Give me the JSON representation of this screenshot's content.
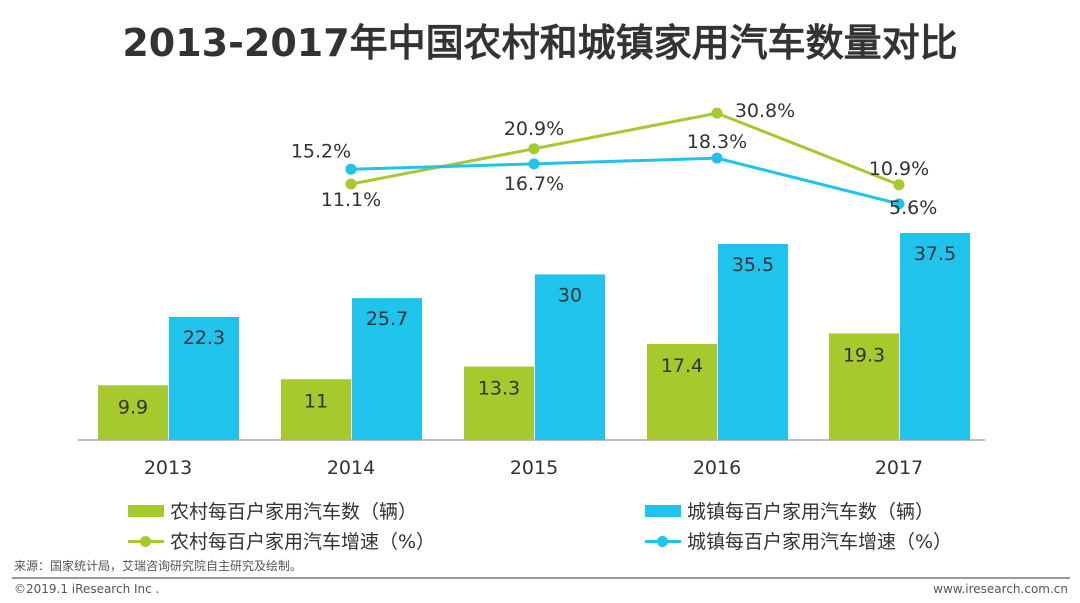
{
  "chart_data": {
    "type": "bar+line",
    "title": "2013-2017年中国农村和城镇家用汽车数量对比",
    "categories": [
      "2013",
      "2014",
      "2015",
      "2016",
      "2017"
    ],
    "bar_series": [
      {
        "name": "农村每百户家用汽车数（辆）",
        "color": "#a6c92d",
        "values": [
          9.9,
          11,
          13.3,
          17.4,
          19.3
        ]
      },
      {
        "name": "城镇每百户家用汽车数（辆）",
        "color": "#1fc3ec",
        "values": [
          22.3,
          25.7,
          30,
          35.5,
          37.5
        ]
      }
    ],
    "line_series": [
      {
        "name": "农村每百户家用汽车增速（%）",
        "color": "#a6c92d",
        "categories": [
          "2014",
          "2015",
          "2016",
          "2017"
        ],
        "values": [
          11.1,
          20.9,
          30.8,
          10.9
        ],
        "labels": [
          "11.1%",
          "20.9%",
          "30.8%",
          "10.9%"
        ]
      },
      {
        "name": "城镇每百户家用汽车增速（%）",
        "color": "#1fc3ec",
        "categories": [
          "2014",
          "2015",
          "2016",
          "2017"
        ],
        "values": [
          15.2,
          16.7,
          18.3,
          5.6
        ],
        "labels": [
          "15.2%",
          "16.7%",
          "18.3%",
          "5.6%"
        ]
      }
    ],
    "bar_labels": [
      [
        "9.9",
        "11",
        "13.3",
        "17.4",
        "19.3"
      ],
      [
        "22.3",
        "25.7",
        "30",
        "35.5",
        "37.5"
      ]
    ],
    "legend_position": "bottom",
    "grid": false
  },
  "footer": {
    "source": "来源：国家统计局，艾瑞咨询研究院自主研究及绘制。",
    "copyright": "©2019.1 iResearch Inc .",
    "website": "www.iresearch.com.cn"
  }
}
